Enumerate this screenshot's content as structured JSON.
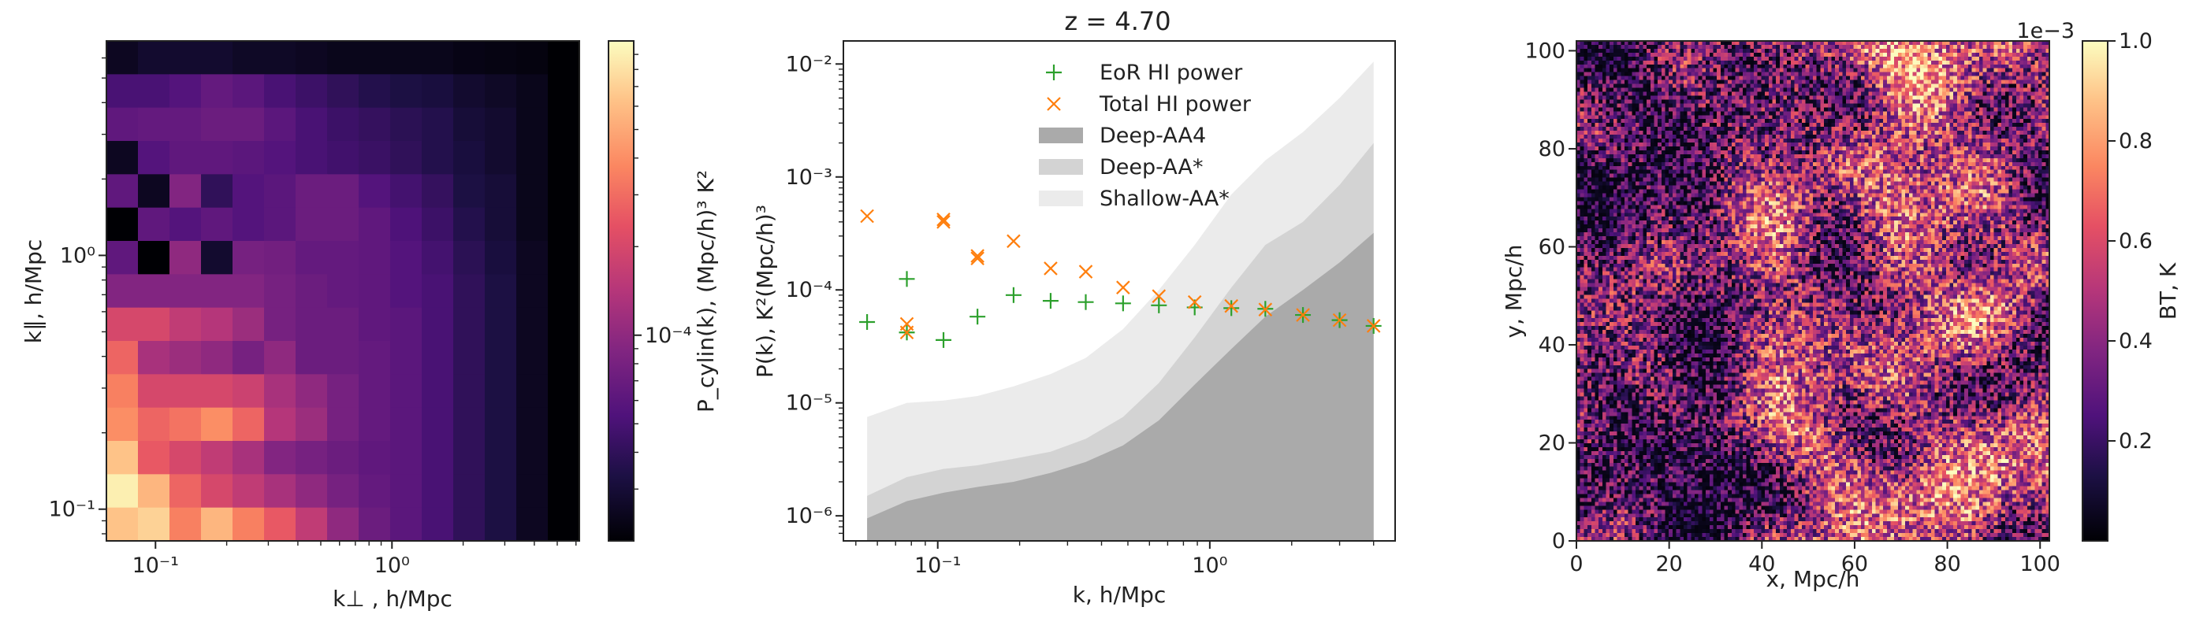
{
  "chart_data": [
    {
      "type": "heatmap",
      "title": "",
      "xlabel": "k⊥ , h/Mpc",
      "ylabel": "k∥, h/Mpc",
      "x_scale": "log",
      "y_scale": "log",
      "xlim": [
        0.062,
        6.2
      ],
      "ylim": [
        0.075,
        7.0
      ],
      "x_ticks": [
        {
          "value": 0.1,
          "label": "10⁻¹"
        },
        {
          "value": 1,
          "label": "10⁰"
        }
      ],
      "y_ticks": [
        {
          "value": 0.1,
          "label": "10⁻¹"
        },
        {
          "value": 1,
          "label": "10⁰"
        }
      ],
      "grid_n": 15,
      "colorbar": {
        "label": "P_cylin(k), (Mpc/h)³ K²",
        "ticks": [
          {
            "value": 0.0001,
            "label": "10⁻⁴"
          }
        ],
        "range": [
          2e-05,
          0.001
        ],
        "scale": "log"
      },
      "rows_log10_top_to_bottom": [
        [
          -4.6,
          -4.55,
          -4.55,
          -4.55,
          -4.58,
          -4.58,
          -4.6,
          -4.62,
          -4.62,
          -4.62,
          -4.62,
          -4.64,
          -4.65,
          -4.66,
          -4.9
        ],
        [
          -4.3,
          -4.3,
          -4.25,
          -4.18,
          -4.22,
          -4.3,
          -4.35,
          -4.4,
          -4.45,
          -4.48,
          -4.5,
          -4.55,
          -4.58,
          -4.62,
          -4.9
        ],
        [
          -4.2,
          -4.18,
          -4.18,
          -4.15,
          -4.15,
          -4.22,
          -4.3,
          -4.35,
          -4.38,
          -4.42,
          -4.45,
          -4.52,
          -4.55,
          -4.62,
          -4.9
        ],
        [
          -4.6,
          -4.25,
          -4.2,
          -4.2,
          -4.22,
          -4.25,
          -4.3,
          -4.33,
          -4.36,
          -4.4,
          -4.45,
          -4.5,
          -4.55,
          -4.62,
          -4.9
        ],
        [
          -4.2,
          -4.6,
          -4.05,
          -4.4,
          -4.25,
          -4.22,
          -4.15,
          -4.15,
          -4.25,
          -4.32,
          -4.38,
          -4.48,
          -4.52,
          -4.62,
          -4.9
        ],
        [
          -4.7,
          -4.2,
          -4.25,
          -4.2,
          -4.25,
          -4.22,
          -4.15,
          -4.15,
          -4.2,
          -4.28,
          -4.35,
          -4.45,
          -4.52,
          -4.62,
          -4.9
        ],
        [
          -4.2,
          -4.7,
          -4.0,
          -4.55,
          -4.1,
          -4.12,
          -4.18,
          -4.18,
          -4.2,
          -4.25,
          -4.32,
          -4.42,
          -4.5,
          -4.6,
          -4.9
        ],
        [
          -4.05,
          -4.05,
          -4.05,
          -4.05,
          -4.05,
          -4.1,
          -4.15,
          -4.18,
          -4.2,
          -4.25,
          -4.3,
          -4.4,
          -4.48,
          -4.6,
          -4.9
        ],
        [
          -3.7,
          -3.7,
          -3.8,
          -3.85,
          -3.95,
          -4.1,
          -4.15,
          -4.15,
          -4.2,
          -4.22,
          -4.3,
          -4.4,
          -4.48,
          -4.6,
          -4.9
        ],
        [
          -3.55,
          -3.9,
          -3.95,
          -4.0,
          -4.1,
          -4.0,
          -4.15,
          -4.15,
          -4.18,
          -4.22,
          -4.3,
          -4.4,
          -4.48,
          -4.6,
          -4.9
        ],
        [
          -3.45,
          -3.7,
          -3.7,
          -3.7,
          -3.75,
          -3.9,
          -4.0,
          -4.1,
          -4.18,
          -4.22,
          -4.3,
          -4.4,
          -4.48,
          -4.6,
          -4.9
        ],
        [
          -3.4,
          -3.55,
          -3.5,
          -3.4,
          -3.55,
          -3.85,
          -3.95,
          -4.1,
          -4.18,
          -4.22,
          -4.3,
          -4.4,
          -4.48,
          -4.6,
          -4.9
        ],
        [
          -3.2,
          -3.6,
          -3.7,
          -3.8,
          -3.9,
          -4.05,
          -4.1,
          -4.15,
          -4.2,
          -4.22,
          -4.3,
          -4.4,
          -4.48,
          -4.6,
          -4.9
        ],
        [
          -3.05,
          -3.25,
          -3.55,
          -3.7,
          -3.8,
          -3.9,
          -4.0,
          -4.1,
          -4.18,
          -4.22,
          -4.3,
          -4.4,
          -4.48,
          -4.6,
          -4.9
        ],
        [
          -3.2,
          -3.15,
          -3.45,
          -3.25,
          -3.45,
          -3.6,
          -3.8,
          -4.0,
          -4.15,
          -4.22,
          -4.3,
          -4.4,
          -4.48,
          -4.6,
          -4.9
        ]
      ]
    },
    {
      "type": "line",
      "title": "z = 4.70",
      "xlabel": "k, h/Mpc",
      "ylabel": "P(k), K²(Mpc/h)³",
      "x_scale": "log",
      "y_scale": "log",
      "xlim": [
        0.045,
        4.8
      ],
      "ylim": [
        6e-07,
        0.016
      ],
      "x_ticks": [
        {
          "value": 0.1,
          "label": "10⁻¹"
        },
        {
          "value": 1,
          "label": "10⁰"
        }
      ],
      "y_ticks": [
        {
          "value": 1e-06,
          "label": "10⁻⁶"
        },
        {
          "value": 1e-05,
          "label": "10⁻⁵"
        },
        {
          "value": 0.0001,
          "label": "10⁻⁴"
        },
        {
          "value": 0.001,
          "label": "10⁻³"
        },
        {
          "value": 0.01,
          "label": "10⁻²"
        }
      ],
      "legend_position": "top-center",
      "series": [
        {
          "name": "EoR HI power",
          "marker": "+",
          "color": "#2ca02c",
          "x": [
            0.055,
            0.077,
            0.077,
            0.105,
            0.14,
            0.19,
            0.26,
            0.35,
            0.48,
            0.65,
            0.88,
            1.2,
            1.6,
            2.2,
            3.0,
            4.0
          ],
          "y": [
            5.2e-05,
            0.000125,
            4.2e-05,
            3.6e-05,
            5.8e-05,
            9e-05,
            8e-05,
            7.8e-05,
            7.6e-05,
            7.3e-05,
            7e-05,
            6.9e-05,
            6.8e-05,
            6e-05,
            5.4e-05,
            4.8e-05
          ]
        },
        {
          "name": "Total HI power",
          "marker": "x",
          "color": "#ff7f0e",
          "x": [
            0.055,
            0.077,
            0.077,
            0.105,
            0.105,
            0.14,
            0.14,
            0.19,
            0.26,
            0.35,
            0.48,
            0.65,
            0.88,
            1.2,
            1.6,
            2.2,
            3.0,
            4.0
          ],
          "y": [
            0.00045,
            5e-05,
            4.2e-05,
            0.00042,
            0.0004,
            0.0002,
            0.00019,
            0.00027,
            0.000155,
            0.000145,
            0.000105,
            8.8e-05,
            7.8e-05,
            7.2e-05,
            6.7e-05,
            6e-05,
            5.4e-05,
            4.8e-05
          ]
        },
        {
          "name": "Shallow-AA*",
          "kind": "band",
          "color": "#ebebeb",
          "x": [
            0.055,
            0.077,
            0.105,
            0.14,
            0.19,
            0.26,
            0.35,
            0.48,
            0.65,
            0.88,
            1.2,
            1.6,
            2.2,
            3.0,
            4.0
          ],
          "y": [
            7.5e-06,
            1e-05,
            1.05e-05,
            1.15e-05,
            1.4e-05,
            1.8e-05,
            2.5e-05,
            4.5e-05,
            0.0001,
            0.00025,
            0.0007,
            0.0014,
            0.0025,
            0.005,
            0.0105
          ]
        },
        {
          "name": "Deep-AA*",
          "kind": "band",
          "color": "#d3d3d3",
          "x": [
            0.055,
            0.077,
            0.105,
            0.14,
            0.19,
            0.26,
            0.35,
            0.48,
            0.65,
            0.88,
            1.2,
            1.6,
            2.2,
            3.0,
            4.0
          ],
          "y": [
            1.5e-06,
            2.2e-06,
            2.6e-06,
            2.8e-06,
            3.2e-06,
            3.7e-06,
            4.8e-06,
            7.5e-06,
            1.5e-05,
            3.8e-05,
            0.000105,
            0.00025,
            0.0004,
            0.00085,
            0.002
          ]
        },
        {
          "name": "Deep-AA4",
          "kind": "band",
          "color": "#aaaaaa",
          "x": [
            0.055,
            0.077,
            0.105,
            0.14,
            0.19,
            0.26,
            0.35,
            0.48,
            0.65,
            0.88,
            1.2,
            1.6,
            2.2,
            3.0,
            4.0
          ],
          "y": [
            9.5e-07,
            1.35e-06,
            1.6e-06,
            1.8e-06,
            2e-06,
            2.4e-06,
            3e-06,
            4.2e-06,
            7e-06,
            1.45e-05,
            3e-05,
            5.8e-05,
            0.0001,
            0.000175,
            0.00032
          ]
        }
      ]
    },
    {
      "type": "heatmap",
      "title": "",
      "xlabel": "x, Mpc/h",
      "ylabel": "y, Mpc/h",
      "xlim": [
        0,
        102
      ],
      "ylim": [
        0,
        102
      ],
      "x_ticks": [
        0,
        20,
        40,
        60,
        80,
        100
      ],
      "y_ticks": [
        0,
        20,
        40,
        60,
        80,
        100
      ],
      "grid_n": 128,
      "colorbar": {
        "label": "BT, K",
        "multiplier": "1e−3",
        "range": [
          0,
          0.001
        ],
        "ticks": [
          {
            "value": 0.2,
            "label": "0.2"
          },
          {
            "value": 0.4,
            "label": "0.4"
          },
          {
            "value": 0.6,
            "label": "0.6"
          },
          {
            "value": 0.8,
            "label": "0.8"
          },
          {
            "value": 1.0,
            "label": "1.0"
          }
        ]
      }
    }
  ]
}
